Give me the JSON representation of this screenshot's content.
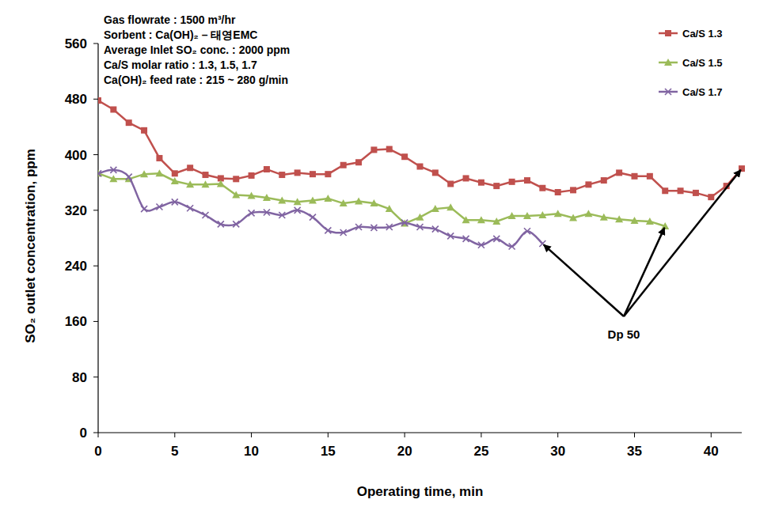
{
  "chart_data": {
    "type": "line",
    "x_label": "Operating time, min",
    "y_label": "SO₂ outlet concentration, ppm",
    "text_block": [
      "Gas flowrate : 1500 m³/hr",
      "Sorbent : Ca(OH)₂ – 태영EMC",
      "Average Inlet SO₂ conc. : 2000 ppm",
      "Ca/S molar ratio : 1.3, 1.5, 1.7",
      "Ca(OH)₂ feed rate : 215 ~ 280 g/min"
    ],
    "annotations": [
      "Dp 50"
    ],
    "xlim": [
      0,
      42
    ],
    "xticks": [
      0,
      5,
      10,
      15,
      20,
      25,
      30,
      35,
      40
    ],
    "ylim": [
      0,
      560
    ],
    "yticks": [
      0,
      80,
      160,
      240,
      320,
      400,
      480,
      560
    ],
    "grid": false,
    "legend": "top-right",
    "series": [
      {
        "name": "Ca/S 1.3",
        "color": "#c0504d",
        "marker": "square",
        "line_style": "solid",
        "x": [
          0,
          1,
          2,
          3,
          4,
          5,
          6,
          7,
          8,
          9,
          10,
          11,
          12,
          13,
          14,
          15,
          16,
          17,
          18,
          19,
          20,
          21,
          22,
          23,
          24,
          25,
          26,
          27,
          28,
          29,
          30,
          31,
          32,
          33,
          34,
          35,
          36,
          37,
          38,
          39,
          40,
          41,
          42
        ],
        "values": [
          478,
          465,
          446,
          435,
          395,
          373,
          381,
          371,
          366,
          365,
          370,
          379,
          371,
          374,
          372,
          372,
          385,
          389,
          407,
          408,
          397,
          383,
          374,
          358,
          366,
          360,
          355,
          361,
          363,
          352,
          346,
          349,
          357,
          363,
          374,
          369,
          369,
          348,
          348,
          345,
          339,
          355,
          380
        ]
      },
      {
        "name": "Ca/S 1.5",
        "color": "#9bbb59",
        "marker": "triangle",
        "line_style": "solid",
        "x": [
          0,
          1,
          2,
          3,
          4,
          5,
          6,
          7,
          8,
          9,
          10,
          11,
          12,
          13,
          14,
          15,
          16,
          17,
          18,
          19,
          20,
          21,
          22,
          23,
          24,
          25,
          26,
          27,
          28,
          29,
          30,
          31,
          32,
          33,
          34,
          35,
          36,
          37
        ],
        "values": [
          373,
          365,
          365,
          372,
          373,
          362,
          357,
          357,
          358,
          342,
          341,
          338,
          334,
          332,
          334,
          337,
          330,
          333,
          330,
          322,
          301,
          310,
          322,
          324,
          306,
          306,
          304,
          312,
          312,
          313,
          315,
          309,
          315,
          310,
          307,
          305,
          304,
          297
        ]
      },
      {
        "name": "Ca/S 1.7",
        "color": "#8064a2",
        "marker": "x",
        "line_style": "smooth",
        "x": [
          0,
          1,
          2,
          3,
          4,
          5,
          6,
          7,
          8,
          9,
          10,
          11,
          12,
          13,
          14,
          15,
          16,
          17,
          18,
          19,
          20,
          21,
          22,
          23,
          24,
          25,
          26,
          27,
          28,
          29
        ],
        "values": [
          373,
          378,
          368,
          322,
          325,
          332,
          323,
          313,
          300,
          300,
          316,
          317,
          313,
          320,
          310,
          291,
          288,
          296,
          295,
          296,
          302,
          296,
          293,
          283,
          279,
          270,
          279,
          268,
          290,
          272
        ]
      }
    ]
  }
}
